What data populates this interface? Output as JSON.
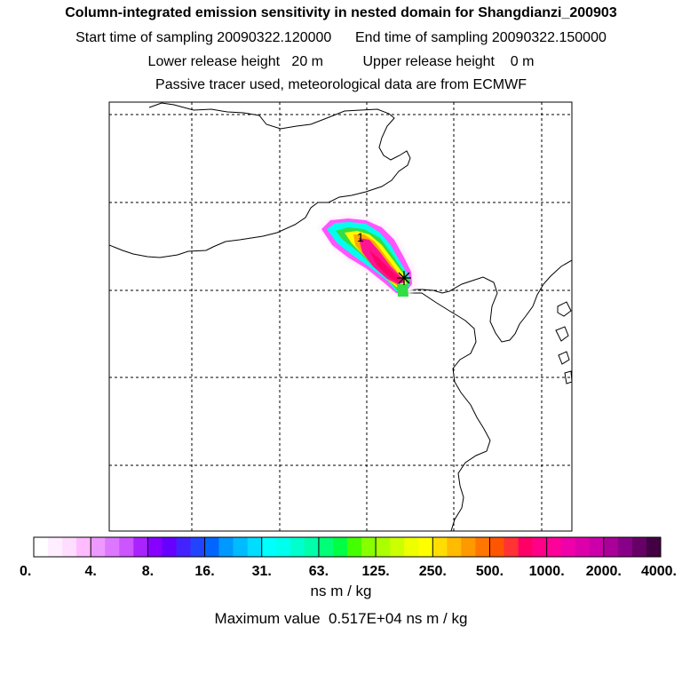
{
  "header": {
    "title": "Column-integrated emission sensitivity in nested domain for Shangdianzi_200903",
    "start_label": "Start time of sampling 20090322.120000",
    "end_label": "End time of sampling 20090322.150000",
    "lower_label": "Lower release height   20 m",
    "upper_label": "Upper release height    0 m",
    "tracer_line": "Passive tracer used, meteorological data are from ECMWF"
  },
  "map": {
    "plume_label": "1",
    "colors": {
      "low": "#ffe8ff",
      "magenta": "#ff66ff",
      "cyan": "#00ffee",
      "green": "#33dd44",
      "yellow": "#ffff00",
      "orange": "#ffaa00",
      "pink": "#ff1493",
      "crimson": "#ff0066"
    }
  },
  "colorbar": {
    "tick_labels": [
      "0.",
      "4.",
      "8.",
      "16.",
      "31.",
      "63.",
      "125.",
      "250.",
      "500.",
      "1000.",
      "2000.",
      "4000."
    ],
    "colors": [
      "#ffffff",
      "#ffeeff",
      "#ffddff",
      "#ffbbff",
      "#ee99ff",
      "#dd77ff",
      "#cc55ff",
      "#aa22ff",
      "#8800ff",
      "#6600ff",
      "#4422ff",
      "#2244ff",
      "#0066ff",
      "#0099ff",
      "#00bbff",
      "#00ddff",
      "#00ffff",
      "#00ffee",
      "#00ffcc",
      "#00ffaa",
      "#00ff77",
      "#00ff44",
      "#44ff00",
      "#88ff00",
      "#aaff00",
      "#ccff00",
      "#eeff00",
      "#ffff00",
      "#ffdd00",
      "#ffbb00",
      "#ff9900",
      "#ff7700",
      "#ff5500",
      "#ff3333",
      "#ff0066",
      "#ff0088",
      "#ff0099",
      "#ee00aa",
      "#dd00aa",
      "#cc00aa",
      "#aa0099",
      "#880088",
      "#660066",
      "#440044"
    ],
    "unit": "ns m / kg",
    "max_text": "Maximum value  0.517E+04 ns m / kg"
  }
}
